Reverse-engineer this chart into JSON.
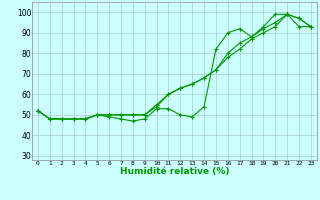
{
  "xlabel": "Humidité relative (%)",
  "xlim": [
    -0.5,
    23.5
  ],
  "ylim": [
    28,
    105
  ],
  "yticks": [
    30,
    40,
    50,
    60,
    70,
    80,
    90,
    100
  ],
  "bg_color": "#ccffff",
  "grid_color": "#aacccc",
  "line_color": "#009900",
  "series1": [
    52,
    48,
    48,
    48,
    48,
    50,
    49,
    48,
    47,
    48,
    53,
    53,
    50,
    49,
    54,
    82,
    90,
    92,
    88,
    93,
    99,
    99,
    93,
    93
  ],
  "series2": [
    52,
    48,
    48,
    48,
    48,
    50,
    50,
    50,
    50,
    50,
    54,
    60,
    63,
    65,
    68,
    72,
    80,
    85,
    88,
    92,
    95,
    99,
    97,
    93
  ],
  "series3": [
    52,
    48,
    48,
    48,
    48,
    50,
    50,
    50,
    50,
    50,
    55,
    60,
    63,
    65,
    68,
    72,
    78,
    82,
    87,
    90,
    93,
    99,
    97,
    93
  ]
}
